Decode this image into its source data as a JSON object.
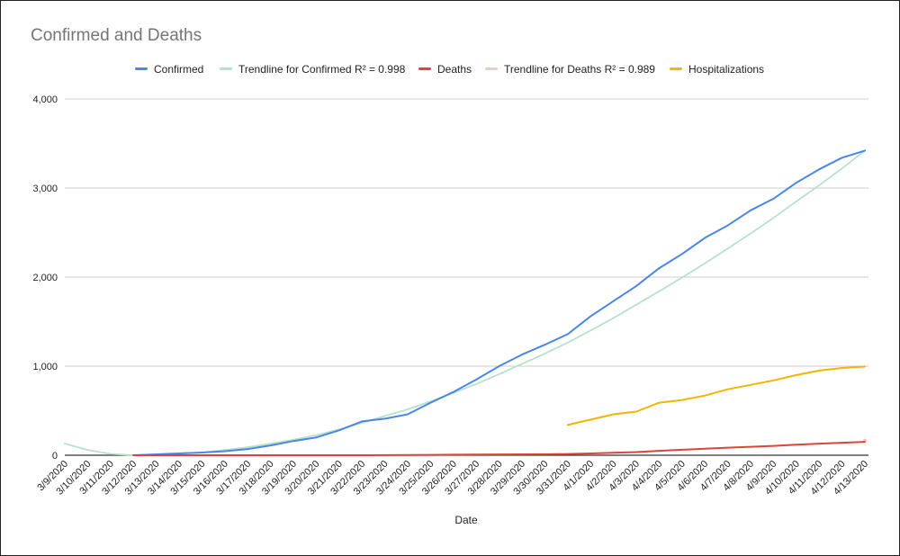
{
  "chart_data": {
    "type": "line",
    "title": "Confirmed and Deaths",
    "xlabel": "Date",
    "ylabel": "",
    "ylim": [
      0,
      4000
    ],
    "yticks": [
      {
        "value": 0,
        "label": "0"
      },
      {
        "value": 1000,
        "label": "1,000"
      },
      {
        "value": 2000,
        "label": "2,000"
      },
      {
        "value": 3000,
        "label": "3,000"
      },
      {
        "value": 4000,
        "label": "4,000"
      }
    ],
    "grid": "horizontal",
    "legend_position": "top",
    "categories": [
      "3/9/2020",
      "3/10/2020",
      "3/11/2020",
      "3/12/2020",
      "3/13/2020",
      "3/14/2020",
      "3/15/2020",
      "3/16/2020",
      "3/17/2020",
      "3/18/2020",
      "3/19/2020",
      "3/20/2020",
      "3/21/2020",
      "3/22/2020",
      "3/23/2020",
      "3/24/2020",
      "3/25/2020",
      "3/26/2020",
      "3/27/2020",
      "3/28/2020",
      "3/29/2020",
      "3/30/2020",
      "3/31/2020",
      "4/1/2020",
      "4/2/2020",
      "4/3/2020",
      "4/4/2020",
      "4/5/2020",
      "4/6/2020",
      "4/7/2020",
      "4/8/2020",
      "4/9/2020",
      "4/10/2020",
      "4/11/2020",
      "4/12/2020",
      "4/13/2020"
    ],
    "series": [
      {
        "name": "Confirmed",
        "color": "#4a86e8",
        "values": [
          null,
          null,
          null,
          0,
          10,
          20,
          30,
          45,
          70,
          110,
          160,
          200,
          280,
          380,
          410,
          460,
          590,
          710,
          850,
          1000,
          1130,
          1240,
          1360,
          1560,
          1730,
          1900,
          2100,
          2260,
          2440,
          2580,
          2750,
          2880,
          3060,
          3210,
          3340,
          3420
        ]
      },
      {
        "name": "Trendline for Confirmed R² = 0.998",
        "color": "#b7e1cd",
        "trendline": true,
        "values": [
          130,
          60,
          15,
          0,
          5,
          18,
          30,
          60,
          90,
          130,
          175,
          225,
          290,
          365,
          440,
          515,
          605,
          700,
          800,
          910,
          1025,
          1140,
          1265,
          1400,
          1540,
          1690,
          1840,
          1995,
          2155,
          2320,
          2490,
          2665,
          2850,
          3030,
          3220,
          3420
        ]
      },
      {
        "name": "Deaths",
        "color": "#db4437",
        "values": [
          null,
          null,
          null,
          0,
          0,
          0,
          0,
          0,
          0,
          0,
          0,
          0,
          0,
          0,
          1,
          2,
          4,
          6,
          8,
          9,
          10,
          11,
          14,
          20,
          27,
          35,
          50,
          62,
          73,
          85,
          95,
          105,
          118,
          130,
          140,
          150
        ]
      },
      {
        "name": "Trendline for Deaths R² = 0.989",
        "color": "#f4c7c3",
        "trendline": true,
        "values": [
          null,
          null,
          null,
          null,
          null,
          null,
          null,
          null,
          null,
          null,
          null,
          null,
          null,
          null,
          null,
          null,
          null,
          null,
          null,
          null,
          null,
          null,
          null,
          null,
          null,
          null,
          null,
          null,
          null,
          null,
          null,
          null,
          null,
          null,
          null,
          165
        ]
      },
      {
        "name": "Hospitalizations",
        "color": "#f4b400",
        "values": [
          null,
          null,
          null,
          null,
          null,
          null,
          null,
          null,
          null,
          null,
          null,
          null,
          null,
          null,
          null,
          null,
          null,
          null,
          null,
          null,
          null,
          null,
          340,
          400,
          460,
          490,
          590,
          620,
          670,
          740,
          790,
          840,
          900,
          950,
          980,
          995
        ]
      }
    ]
  }
}
